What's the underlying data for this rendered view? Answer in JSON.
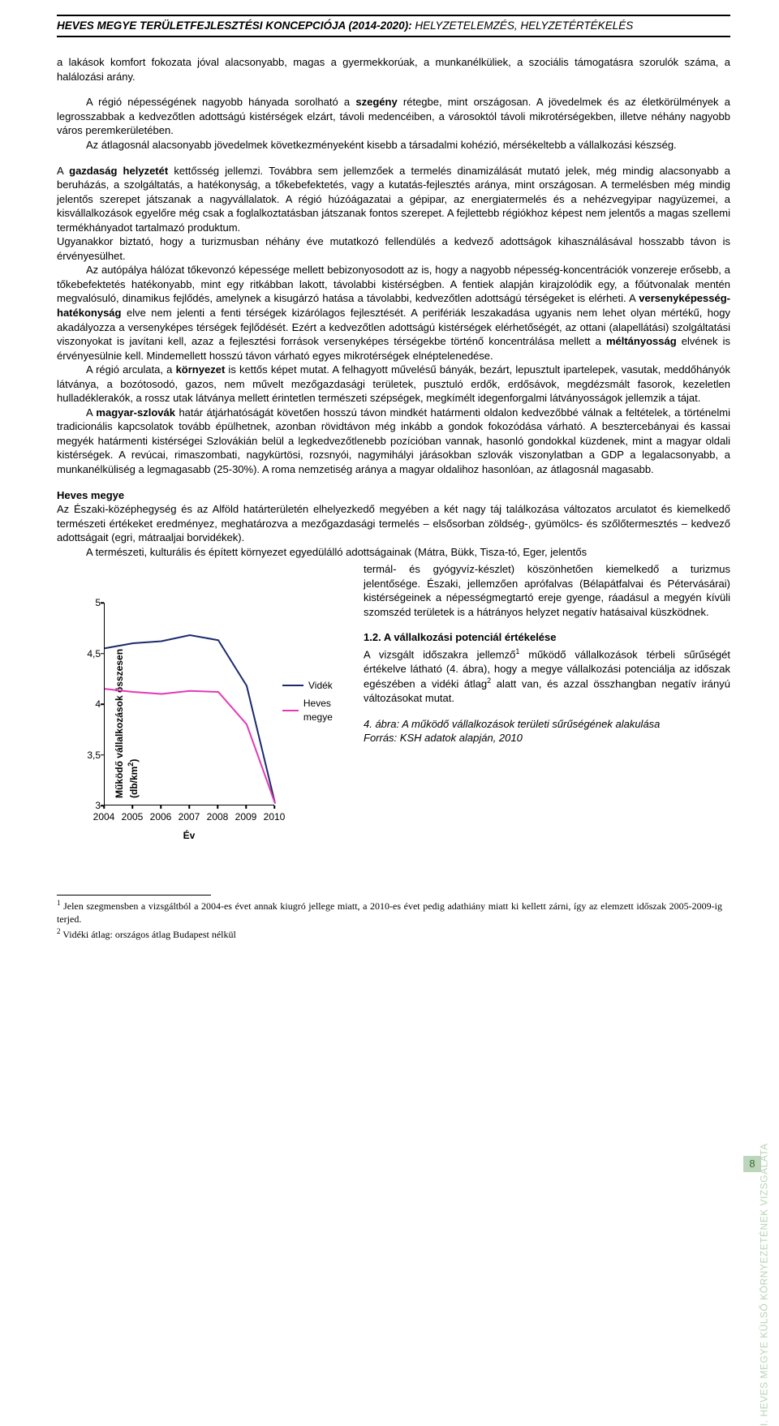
{
  "header": {
    "title_main": "HEVES MEGYE TERÜLETFEJLESZTÉSI KONCEPCIÓJA (2014-2020): ",
    "title_sub": "HELYZETELEMZÉS, HELYZETÉRTÉKELÉS"
  },
  "body": {
    "p1": "a lakások komfort fokozata jóval alacsonyabb, magas a gyermekkorúak, a munkanélküliek, a szociális támogatásra szorulók száma, a halálozási arány.",
    "p2a": "A régió népességének nagyobb hányada sorolható a ",
    "p2_bold": "szegény",
    "p2b": " rétegbe, mint országosan. A jövedelmek és az életkörülmények a legrosszabbak a kedvezőtlen adottságú kistérségek elzárt, távoli medencéiben, a városoktól távoli mikrotérségekben, illetve néhány nagyobb város peremkerületében.",
    "p3": "Az átlagosnál alacsonyabb jövedelmek következményeként kisebb a társadalmi kohézió, mérsékeltebb a vállalkozási készség.",
    "p4a": "A ",
    "p4_bold1": "gazdaság helyzetét",
    "p4b": " kettősség jellemzi. Továbbra sem jellemzőek a termelés dinamizálását mutató jelek, még mindig alacsonyabb a beruházás, a szolgáltatás, a hatékonyság, a tőkebefektetés, vagy a kutatás-fejlesztés aránya, mint országosan. A termelésben még mindig jelentős szerepet játszanak a nagyvállalatok. A régió húzóágazatai a gépipar, az energiatermelés és a nehézvegyipar nagyüzemei, a kisvállalkozások egyelőre még csak a foglalkoztatásban játszanak fontos szerepet. A fejlettebb régiókhoz képest nem jelentős a magas szellemi termékhányadot tartalmazó produktum.",
    "p5": "Ugyanakkor biztató, hogy a turizmusban néhány éve mutatkozó fellendülés a kedvező adottságok kihasználásával hosszabb távon is érvényesülhet.",
    "p6a": "Az autópálya hálózat tőkevonzó képessége mellett bebizonyosodott az is, hogy a nagyobb népesség-koncentrációk vonzereje erősebb, a tőkebefektetés hatékonyabb, mint egy ritkábban lakott, távolabbi kistérségben. A fentiek alapján kirajzolódik egy, a főútvonalak mentén megvalósuló, dinamikus fejlődés, amelynek a kisugárzó hatása a távolabbi, kedvezőtlen adottságú térségeket is elérheti. A ",
    "p6_bold1": "versenyképesség-hatékonyság",
    "p6b": " elve nem jelenti a fenti térségek kizárólagos fejlesztését. A perifériák leszakadása ugyanis nem lehet olyan mértékű, hogy akadályozza a versenyképes térségek fejlődését. Ezért a kedvezőtlen adottságú kistérségek elérhetőségét, az ottani (alapellátási) szolgáltatási viszonyokat is javítani kell, azaz a fejlesztési források versenyképes térségekbe történő koncentrálása mellett a ",
    "p6_bold2": "méltányosság",
    "p6c": " elvének is érvényesülnie kell. Mindemellett hosszú távon várható egyes mikrotérségek elnéptelenedése.",
    "p7a": "A régió arculata, a ",
    "p7_bold": "környezet",
    "p7b": " is kettős képet mutat. A felhagyott művelésű bányák, bezárt, lepusztult ipartelepek, vasutak, meddőhányók látványa, a bozótosodó, gazos, nem művelt mezőgazdasági területek, pusztuló erdők, erdősávok, megdézsmált fasorok, kezeletlen hulladéklerakók, a rossz utak látványa mellett érintetlen természeti szépségek, megkímélt idegenforgalmi látványosságok jellemzik a tájat.",
    "p8a": "A ",
    "p8_bold": "magyar-szlovák",
    "p8b": " határ átjárhatóságát követően hosszú távon mindkét határmenti oldalon kedvezőbbé válnak a feltételek, a történelmi tradicionális kapcsolatok tovább épülhetnek, azonban rövidtávon még inkább a gondok fokozódása várható. A besztercebányai és kassai megyék határmenti kistérségei Szlovákián belül a legkedvezőtlenebb pozícióban vannak, hasonló gondokkal küzdenek, mint a magyar oldali kistérségek. A revúcai, rimaszombati, nagykürtösi, rozsnyói, nagymihályi járásokban szlovák viszonylatban a GDP a legalacsonyabb, a munkanélküliség a legmagasabb (25-30%). A roma nemzetiség aránya a magyar oldalihoz hasonlóan, az átlagosnál magasabb.",
    "heves_h": "Heves megye",
    "p9": "Az Északi-középhegység és az Alföld határterületén elhelyezkedő megyében a két nagy táj találkozása változatos arculatot és kiemelkedő természeti értékeket eredményez, meghatározva a mezőgazdasági termelés – elsősorban zöldség-, gyümölcs- és szőlőtermesztés – kedvező adottságait (egri, mátraaljai borvidékek).",
    "p10": "A természeti, kulturális és épített környezet egyedülálló adottságainak (Mátra, Bükk, Tisza-tó, Eger, jelentős termál- és gyógyvíz-készlet) köszönhetően kiemelkedő a turizmus jelentősége. Északi, jellemzően aprófalvas (Bélapátfalvai és Pétervásárai) kistérségeinek a népességmegtartó ereje gyenge, ráadásul a megyén kívüli szomszéd területek is a hátrányos helyzet negatív hatásaival küszködnek.",
    "subhead12": "1.2. A vállalkozási potenciál értékelése",
    "p11a": "A vizsgált időszakra jellemző",
    "p11b": " működő vállalkozások térbeli sűrűségét értékelve látható (4. ábra), hogy a megye vállalkozási potenciálja az időszak egészében a vidéki átlag",
    "p11c": " alatt van, és azzal összhangban negatív irányú változásokat mutat.",
    "fig_caption": "4. ábra: A működő vállalkozások területi sűrűségének alakulása",
    "fig_source": "Forrás: KSH adatok alapján, 2010"
  },
  "chart": {
    "type": "line",
    "ylabel_a": "Működő vállalkozások összesen",
    "ylabel_b": "(db/km",
    "ylabel_sup": "2",
    "ylabel_c": ")",
    "xlabel": "Év",
    "ylim": [
      3,
      5
    ],
    "ytick_step": 0.5,
    "yticks": [
      "3",
      "3,5",
      "4",
      "4,5",
      "5"
    ],
    "xticks": [
      "2004",
      "2005",
      "2006",
      "2007",
      "2008",
      "2009",
      "2010"
    ],
    "series": [
      {
        "name": "Vidék",
        "color": "#1a2a6c",
        "width": 2,
        "values": [
          4.55,
          4.6,
          4.62,
          4.68,
          4.63,
          4.18,
          3.02
        ]
      },
      {
        "name": "Heves megye",
        "color": "#e23ab6",
        "width": 2,
        "values": [
          4.15,
          4.12,
          4.1,
          4.13,
          4.12,
          3.8,
          3.02
        ]
      }
    ],
    "background_color": "#ffffff",
    "axis_color": "#000000"
  },
  "footnotes": {
    "fn1": " Jelen szegmensben a vizsgáltból a 2004-es évet annak kiugró jellege miatt, a 2010-es évet pedig adathiány miatt ki kellett zárni, így az elemzett időszak 2005-2009-ig terjed.",
    "fn2": " Vidéki átlag: országos átlag Budapest nélkül"
  },
  "side": {
    "label": "I. HEVES MEGYE KÜLSŐ KÖRNYEZETÉNEK VIZSGÁLATA",
    "color": "#b7d4b5"
  },
  "page_number": "8"
}
